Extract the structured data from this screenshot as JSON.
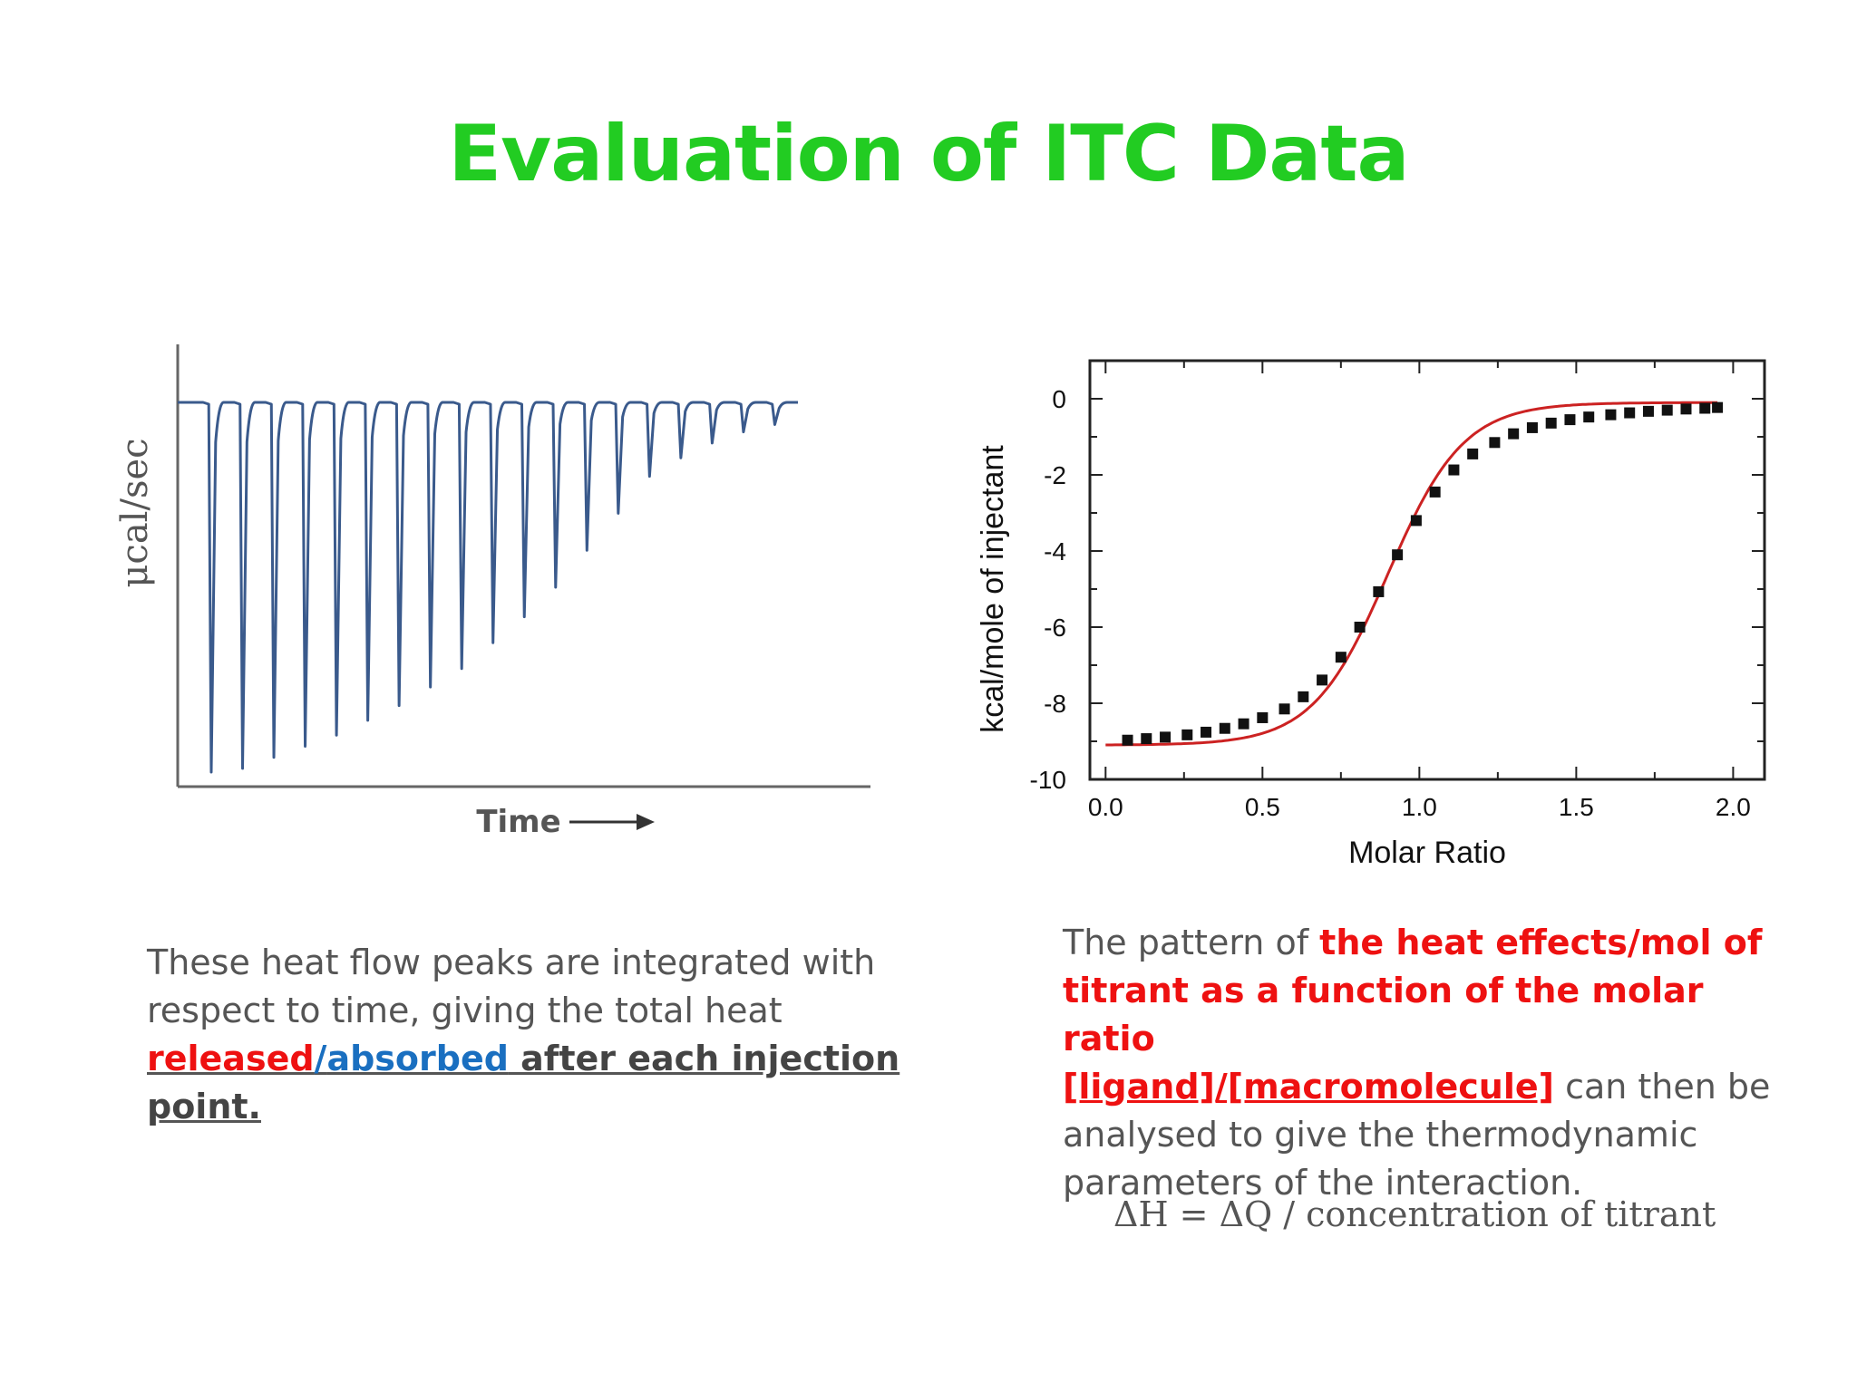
{
  "title": "Evaluation of ITC Data",
  "colors": {
    "title": "#22cc22",
    "highlight_red": "#ee1111",
    "highlight_blue": "#1a6fc0",
    "raw_trace": "#3a5a8c",
    "fit_line": "#cc2222"
  },
  "left_text": {
    "line1": "These heat flow peaks are integrated with",
    "line2": "respect to time, giving the total heat",
    "released": "released",
    "slash": "/",
    "absorbed": "absorbed",
    "after": " after each injection",
    "point": "point."
  },
  "right_text": {
    "intro": "The pattern of ",
    "bold1": "the heat effects/mol of",
    "bold2": "titrant as a function of the molar ratio",
    "bold3": "[ligand]/[macromolecule]",
    "rest3": " can then be",
    "line4": "analysed to give the thermodynamic",
    "line5": "parameters of the interaction."
  },
  "formula": "ΔH = ΔQ / concentration of titrant",
  "chart_data": [
    {
      "type": "line",
      "ylabel": "μcal/sec",
      "xlabel": "Time",
      "baseline": 0,
      "peak_depths": [
        1.0,
        0.99,
        0.96,
        0.93,
        0.9,
        0.86,
        0.82,
        0.77,
        0.72,
        0.65,
        0.58,
        0.5,
        0.4,
        0.3,
        0.2,
        0.15,
        0.11,
        0.08,
        0.06
      ]
    },
    {
      "type": "scatter",
      "xlabel": "Molar Ratio",
      "ylabel": "kcal/mole of injectant",
      "xlim": [
        -0.05,
        2.1
      ],
      "ylim": [
        -10,
        1
      ],
      "xticks": [
        "0.0",
        "0.5",
        "1.0",
        "1.5",
        "2.0"
      ],
      "yticks": [
        "0",
        "-2",
        "-4",
        "-6",
        "-8",
        "-10"
      ],
      "points": [
        [
          0.07,
          -8.97
        ],
        [
          0.13,
          -8.93
        ],
        [
          0.19,
          -8.89
        ],
        [
          0.26,
          -8.83
        ],
        [
          0.32,
          -8.76
        ],
        [
          0.38,
          -8.66
        ],
        [
          0.44,
          -8.54
        ],
        [
          0.5,
          -8.38
        ],
        [
          0.57,
          -8.15
        ],
        [
          0.63,
          -7.83
        ],
        [
          0.69,
          -7.39
        ],
        [
          0.75,
          -6.79
        ],
        [
          0.81,
          -6.0
        ],
        [
          0.87,
          -5.07
        ],
        [
          0.93,
          -4.1
        ],
        [
          0.99,
          -3.2
        ],
        [
          1.05,
          -2.45
        ],
        [
          1.11,
          -1.87
        ],
        [
          1.17,
          -1.45
        ],
        [
          1.24,
          -1.15
        ],
        [
          1.3,
          -0.92
        ],
        [
          1.36,
          -0.76
        ],
        [
          1.42,
          -0.64
        ],
        [
          1.48,
          -0.55
        ],
        [
          1.54,
          -0.48
        ],
        [
          1.61,
          -0.42
        ],
        [
          1.67,
          -0.37
        ],
        [
          1.73,
          -0.33
        ],
        [
          1.79,
          -0.3
        ],
        [
          1.85,
          -0.27
        ],
        [
          1.91,
          -0.25
        ],
        [
          1.95,
          -0.23
        ]
      ],
      "fit": {
        "low": -9.1,
        "high": -0.1,
        "midpoint": 0.9,
        "width": 0.12
      }
    }
  ]
}
